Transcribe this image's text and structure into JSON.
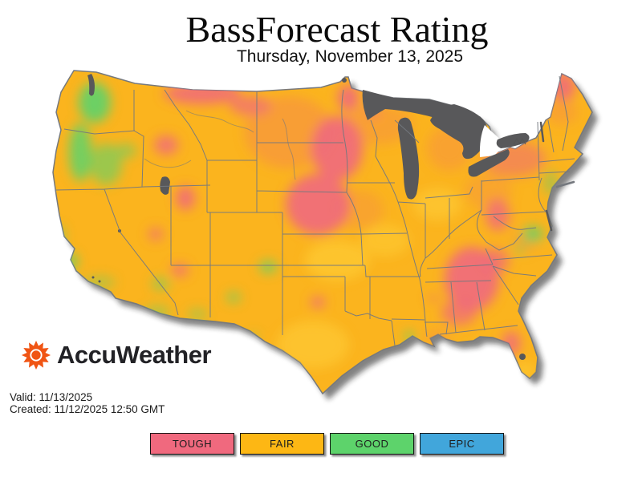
{
  "header": {
    "title": "BassForecast Rating",
    "subtitle": "Thursday, November 13, 2025"
  },
  "branding": {
    "name": "AccuWeather",
    "logo_color": "#F05514"
  },
  "meta": {
    "valid": "Valid: 11/13/2025",
    "created": "Created: 11/12/2025 12:50 GMT"
  },
  "legend": {
    "items": [
      {
        "label": "TOUGH",
        "color": "#F0697E"
      },
      {
        "label": "FAIR",
        "color": "#FDB714"
      },
      {
        "label": "GOOD",
        "color": "#5DD36B"
      },
      {
        "label": "EPIC",
        "color": "#41A6DB"
      }
    ]
  },
  "map": {
    "description": "Contiguous United States bass fishing forecast map, color-coded by rating",
    "base_rating": "FAIR",
    "base_color": "#FBB41E",
    "water_color": "#58585A",
    "border_color": "#74787E",
    "tough_areas": [
      "Northern Montana",
      "Dakotas and Nebraska",
      "Northern Minnesota",
      "Central Utah and Great Basin",
      "Central Texas (small pocket)",
      "Georgia and Alabama",
      "West Virginia",
      "Upstate New York (fair-to-tough)",
      "Northern Maine",
      "Northern Florida"
    ],
    "good_areas": [
      "Western Washington",
      "Western Oregon",
      "Northern California coast",
      "Eastern New Mexico",
      "New Jersey coast",
      "Delmarva and coastal Virginia",
      "Southeast Louisiana (small pocket)"
    ]
  }
}
